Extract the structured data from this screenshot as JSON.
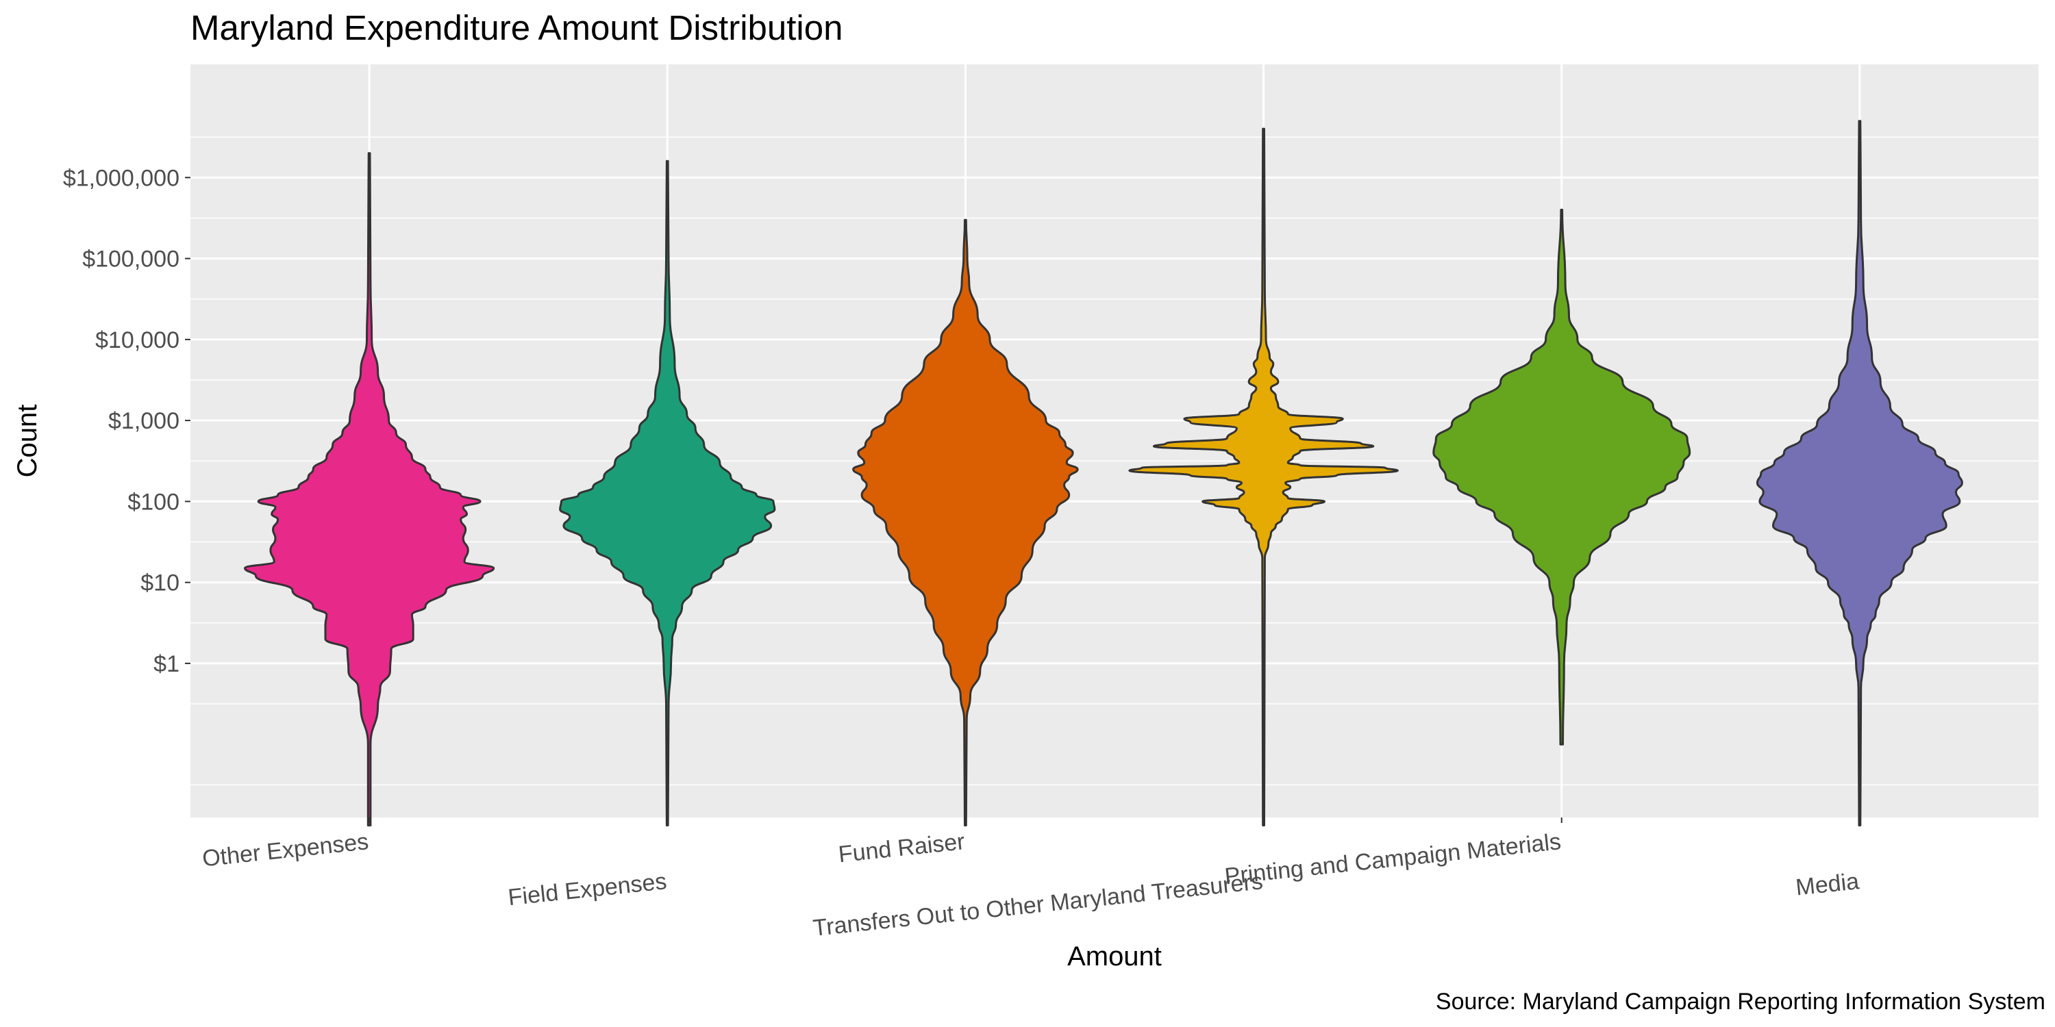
{
  "chart_data": {
    "type": "violin",
    "title": "Maryland Expenditure Amount Distribution",
    "xlabel": "Amount",
    "ylabel": "Count",
    "caption": "Source: Maryland Campaign Reporting Information System",
    "y_scale": "log10",
    "y_ticks": [
      {
        "value": 1,
        "label": "$1"
      },
      {
        "value": 10,
        "label": "$10"
      },
      {
        "value": 100,
        "label": "$100"
      },
      {
        "value": 1000,
        "label": "$1,000"
      },
      {
        "value": 10000,
        "label": "$10,000"
      },
      {
        "value": 100000,
        "label": "$100,000"
      },
      {
        "value": 1000000,
        "label": "$1,000,000"
      }
    ],
    "ylim": [
      0.0125,
      25000000
    ],
    "grid": true,
    "categories": [
      "Other Expenses",
      "Field Expenses",
      "Fund Raiser",
      "Transfers Out to Other Maryland Treasurers",
      "Printing and Campaign Materials",
      "Media"
    ],
    "series": [
      {
        "color": "#E7298A",
        "min": 0.01,
        "max": 2000000,
        "density": [
          [
            0.01,
            0.1
          ],
          [
            0.1,
            0.1
          ],
          [
            0.3,
            0.7
          ],
          [
            0.5,
            0.9
          ],
          [
            0.8,
            1.7
          ],
          [
            1.5,
            1.8
          ],
          [
            2.0,
            3.6
          ],
          [
            3,
            3.6
          ],
          [
            4,
            3.5
          ],
          [
            5,
            4.6
          ],
          [
            8,
            6.3
          ],
          [
            12,
            9.3
          ],
          [
            15,
            10.2
          ],
          [
            18,
            7.8
          ],
          [
            25,
            8.1
          ],
          [
            35,
            7.7
          ],
          [
            45,
            7.9
          ],
          [
            60,
            7.5
          ],
          [
            70,
            8.0
          ],
          [
            85,
            7.7
          ],
          [
            100,
            9.1
          ],
          [
            120,
            7.5
          ],
          [
            150,
            5.8
          ],
          [
            200,
            5.0
          ],
          [
            250,
            4.6
          ],
          [
            350,
            3.5
          ],
          [
            500,
            3.0
          ],
          [
            700,
            2.2
          ],
          [
            1000,
            1.6
          ],
          [
            2000,
            1.2
          ],
          [
            4000,
            0.7
          ],
          [
            10000,
            0.2
          ],
          [
            50000,
            0.1
          ],
          [
            2000000,
            0.05
          ]
        ]
      },
      {
        "color": "#1B9E77",
        "min": 0.01,
        "max": 1600000,
        "density": [
          [
            0.01,
            0.05
          ],
          [
            0.3,
            0.1
          ],
          [
            1,
            0.3
          ],
          [
            2,
            0.4
          ],
          [
            3,
            0.7
          ],
          [
            5,
            1.2
          ],
          [
            8,
            2.0
          ],
          [
            12,
            3.6
          ],
          [
            18,
            4.6
          ],
          [
            25,
            5.8
          ],
          [
            35,
            7.0
          ],
          [
            50,
            8.5
          ],
          [
            65,
            8.0
          ],
          [
            80,
            8.8
          ],
          [
            100,
            8.7
          ],
          [
            120,
            7.3
          ],
          [
            150,
            6.1
          ],
          [
            200,
            5.2
          ],
          [
            300,
            4.3
          ],
          [
            500,
            3.0
          ],
          [
            800,
            2.3
          ],
          [
            1200,
            1.6
          ],
          [
            2000,
            1.0
          ],
          [
            5000,
            0.6
          ],
          [
            20000,
            0.2
          ],
          [
            100000,
            0.1
          ],
          [
            1600000,
            0.05
          ]
        ]
      },
      {
        "color": "#D95F02",
        "min": 0.01,
        "max": 300000,
        "density": [
          [
            0.01,
            0.05
          ],
          [
            0.2,
            0.1
          ],
          [
            0.4,
            0.4
          ],
          [
            0.8,
            1.2
          ],
          [
            1.5,
            1.8
          ],
          [
            3,
            2.6
          ],
          [
            6,
            3.3
          ],
          [
            12,
            4.6
          ],
          [
            25,
            5.5
          ],
          [
            50,
            6.5
          ],
          [
            80,
            7.5
          ],
          [
            120,
            8.5
          ],
          [
            160,
            8.1
          ],
          [
            200,
            8.5
          ],
          [
            250,
            9.2
          ],
          [
            300,
            8.3
          ],
          [
            400,
            8.8
          ],
          [
            500,
            8.2
          ],
          [
            700,
            7.7
          ],
          [
            1000,
            6.6
          ],
          [
            2000,
            5.2
          ],
          [
            5000,
            3.4
          ],
          [
            10000,
            2.0
          ],
          [
            20000,
            1.0
          ],
          [
            50000,
            0.3
          ],
          [
            100000,
            0.15
          ],
          [
            300000,
            0.05
          ]
        ]
      },
      {
        "color": "#E6AB02",
        "min": 0.01,
        "max": 4000000,
        "density": [
          [
            0.01,
            0.05
          ],
          [
            20,
            0.1
          ],
          [
            30,
            0.4
          ],
          [
            40,
            0.6
          ],
          [
            50,
            1.0
          ],
          [
            60,
            1.5
          ],
          [
            80,
            2.0
          ],
          [
            90,
            4.0
          ],
          [
            100,
            5.0
          ],
          [
            110,
            2.0
          ],
          [
            130,
            1.6
          ],
          [
            150,
            2.2
          ],
          [
            170,
            1.8
          ],
          [
            190,
            3.0
          ],
          [
            210,
            6.0
          ],
          [
            240,
            11.0
          ],
          [
            260,
            10.0
          ],
          [
            280,
            3.0
          ],
          [
            300,
            2.0
          ],
          [
            350,
            2.4
          ],
          [
            420,
            3.0
          ],
          [
            480,
            9.0
          ],
          [
            520,
            8.0
          ],
          [
            600,
            3.0
          ],
          [
            800,
            2.2
          ],
          [
            950,
            6.0
          ],
          [
            1050,
            6.5
          ],
          [
            1200,
            2.0
          ],
          [
            1500,
            1.2
          ],
          [
            2000,
            1.0
          ],
          [
            2500,
            0.6
          ],
          [
            3000,
            1.2
          ],
          [
            4000,
            0.6
          ],
          [
            5000,
            0.8
          ],
          [
            6000,
            0.5
          ],
          [
            10000,
            0.2
          ],
          [
            40000,
            0.1
          ],
          [
            4000000,
            0.05
          ]
        ]
      },
      {
        "color": "#66A61E",
        "min": 0.1,
        "max": 400000,
        "density": [
          [
            0.1,
            0.1
          ],
          [
            1,
            0.2
          ],
          [
            3,
            0.4
          ],
          [
            6,
            0.7
          ],
          [
            10,
            1.0
          ],
          [
            20,
            2.3
          ],
          [
            40,
            4.0
          ],
          [
            70,
            5.5
          ],
          [
            100,
            7.0
          ],
          [
            150,
            8.5
          ],
          [
            200,
            9.5
          ],
          [
            300,
            10.0
          ],
          [
            400,
            10.5
          ],
          [
            600,
            10.3
          ],
          [
            900,
            9.0
          ],
          [
            1500,
            7.5
          ],
          [
            3000,
            5.0
          ],
          [
            6000,
            2.5
          ],
          [
            10000,
            1.3
          ],
          [
            20000,
            0.6
          ],
          [
            50000,
            0.3
          ],
          [
            400000,
            0.05
          ]
        ]
      },
      {
        "color": "#7570B3",
        "min": 0.01,
        "max": 5000000,
        "density": [
          [
            0.01,
            0.05
          ],
          [
            0.5,
            0.1
          ],
          [
            1,
            0.3
          ],
          [
            2,
            0.6
          ],
          [
            3,
            0.9
          ],
          [
            4,
            1.3
          ],
          [
            6,
            1.6
          ],
          [
            10,
            2.6
          ],
          [
            15,
            3.6
          ],
          [
            25,
            4.3
          ],
          [
            35,
            5.4
          ],
          [
            50,
            7.1
          ],
          [
            70,
            6.8
          ],
          [
            100,
            8.2
          ],
          [
            130,
            7.9
          ],
          [
            170,
            8.4
          ],
          [
            220,
            8.1
          ],
          [
            300,
            7.0
          ],
          [
            400,
            6.2
          ],
          [
            600,
            4.8
          ],
          [
            900,
            3.5
          ],
          [
            1500,
            2.5
          ],
          [
            3000,
            1.7
          ],
          [
            6000,
            1.0
          ],
          [
            15000,
            0.6
          ],
          [
            50000,
            0.3
          ],
          [
            300000,
            0.1
          ],
          [
            5000000,
            0.05
          ]
        ]
      }
    ]
  }
}
